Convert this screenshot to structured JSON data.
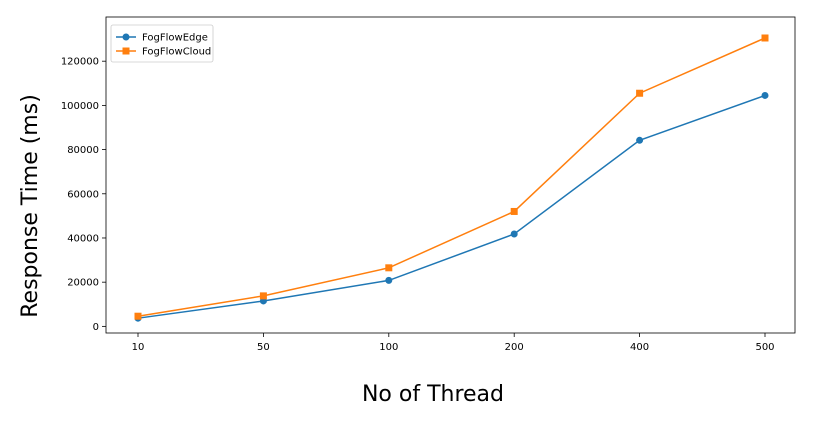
{
  "chart_data": {
    "type": "line",
    "title": "",
    "xlabel": "No of Thread",
    "ylabel": "Response Time (ms)",
    "categories": [
      "10",
      "50",
      "100",
      "200",
      "400",
      "500"
    ],
    "ylim": [
      -3000,
      140000
    ],
    "yticks": [
      0,
      20000,
      40000,
      60000,
      80000,
      100000,
      120000
    ],
    "ytick_labels": [
      "0",
      "20000",
      "40000",
      "60000",
      "80000",
      "100000",
      "120000"
    ],
    "grid": false,
    "legend_position": "top-left",
    "series": [
      {
        "name": "FogFlowEdge",
        "color": "#1f77b4",
        "marker": "circle",
        "values": [
          3700,
          11500,
          20800,
          41800,
          84200,
          104500
        ]
      },
      {
        "name": "FogFlowCloud",
        "color": "#ff7f0e",
        "marker": "square",
        "values": [
          4600,
          13800,
          26500,
          52000,
          105500,
          130500
        ]
      }
    ]
  }
}
